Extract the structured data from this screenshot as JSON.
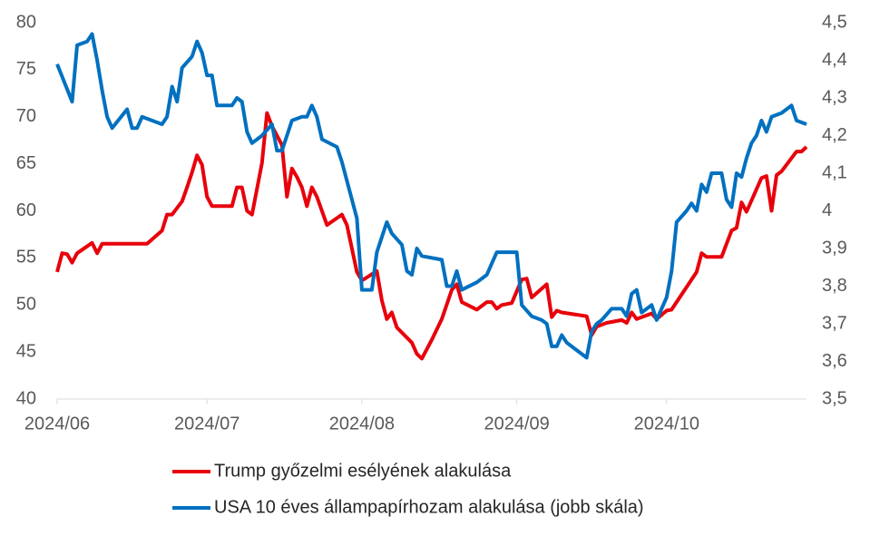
{
  "chart_data": {
    "type": "line",
    "xlim": [
      0,
      150
    ],
    "xticks": [
      {
        "value": 0,
        "label": "2024/06"
      },
      {
        "value": 30,
        "label": "2024/07"
      },
      {
        "value": 61,
        "label": "2024/08"
      },
      {
        "value": 92,
        "label": "2024/09"
      },
      {
        "value": 122,
        "label": "2024/10"
      }
    ],
    "ylim": [
      40,
      80
    ],
    "yticks": [
      40,
      45,
      50,
      55,
      60,
      65,
      70,
      75,
      80
    ],
    "y2lim": [
      3.5,
      4.5
    ],
    "y2ticks": [
      {
        "value": 3.5,
        "label": "3,5"
      },
      {
        "value": 3.6,
        "label": "3,6"
      },
      {
        "value": 3.7,
        "label": "3,7"
      },
      {
        "value": 3.8,
        "label": "3,8"
      },
      {
        "value": 3.9,
        "label": "3,9"
      },
      4,
      {
        "value": 4.1,
        "label": "4,1"
      },
      {
        "value": 4.2,
        "label": "4,2"
      },
      {
        "value": 4.3,
        "label": "4,3"
      },
      {
        "value": 4.4,
        "label": "4,4"
      },
      {
        "value": 4.5,
        "label": "4,5"
      }
    ],
    "series": [
      {
        "name": "Trump győzelmi esélyének alakulása",
        "color": "#e8000b",
        "x": [
          0,
          1,
          2,
          3,
          4,
          7,
          8,
          9,
          18,
          21,
          22,
          23,
          25,
          26,
          27,
          28,
          29,
          30,
          31,
          35,
          36,
          37,
          38,
          39,
          41,
          42,
          43,
          45,
          46,
          47,
          48,
          49,
          50,
          51,
          52,
          54,
          57,
          58,
          60,
          61,
          64,
          65,
          66,
          67,
          68,
          71,
          72,
          73,
          75,
          77,
          79,
          80,
          81,
          84,
          86,
          87,
          88,
          89,
          91,
          93,
          94,
          95,
          98,
          99,
          100,
          101,
          106,
          107,
          108,
          110,
          113,
          114,
          115,
          116,
          119,
          120,
          122,
          123,
          128,
          129,
          130,
          133,
          135,
          136,
          137,
          138,
          141,
          142,
          143,
          144,
          145,
          148,
          149,
          150
        ],
        "values": [
          53.5,
          55.5,
          55.4,
          54.5,
          55.5,
          56.6,
          55.5,
          56.5,
          56.5,
          57.9,
          59.6,
          59.6,
          61.0,
          62.5,
          64.1,
          65.9,
          64.9,
          61.5,
          60.5,
          60.5,
          62.5,
          62.5,
          60.0,
          59.6,
          65.1,
          70.4,
          69.0,
          67.0,
          61.5,
          64.5,
          63.6,
          62.5,
          60.5,
          62.5,
          61.5,
          58.5,
          59.6,
          58.5,
          53.5,
          52.6,
          53.6,
          50.5,
          48.5,
          49.2,
          47.6,
          46.0,
          44.8,
          44.3,
          46.3,
          48.5,
          51.6,
          52.2,
          50.3,
          49.5,
          50.3,
          50.3,
          49.6,
          50.0,
          50.2,
          52.7,
          52.8,
          50.8,
          52.2,
          48.7,
          49.4,
          49.2,
          48.8,
          46.8,
          47.7,
          48.1,
          48.4,
          48.1,
          49.2,
          48.5,
          49.1,
          48.5,
          49.4,
          49.5,
          53.5,
          55.5,
          55.1,
          55.1,
          57.9,
          58.2,
          60.9,
          59.9,
          63.5,
          63.7,
          60.0,
          63.8,
          64.2,
          66.3,
          66.3,
          66.8
        ]
      },
      {
        "name": "USA 10 éves állampapírhozam alakulása (jobb skála)",
        "color": "#0070c0",
        "axis": "y2",
        "x": [
          0,
          3,
          4,
          6,
          7,
          8,
          9,
          10,
          11,
          14,
          15,
          16,
          17,
          21,
          22,
          23,
          24,
          25,
          27,
          28,
          29,
          30,
          31,
          32,
          35,
          36,
          37,
          38,
          39,
          41,
          43,
          44,
          45,
          47,
          49,
          50,
          51,
          52,
          53,
          56,
          57,
          59,
          60,
          61,
          63,
          64,
          66,
          67,
          69,
          70,
          71,
          72,
          73,
          77,
          78,
          79,
          80,
          81,
          84,
          86,
          88,
          92,
          93,
          95,
          97,
          98,
          99,
          100,
          101,
          102,
          104,
          106,
          107,
          108,
          109,
          111,
          113,
          114,
          115,
          116,
          117,
          119,
          120,
          122,
          123,
          124,
          126,
          127,
          128,
          129,
          130,
          131,
          132,
          133,
          134,
          135,
          136,
          137,
          138,
          139,
          140,
          141,
          142,
          143,
          145,
          147,
          148,
          150
        ],
        "values": [
          4.39,
          4.29,
          4.44,
          4.45,
          4.47,
          4.4,
          4.32,
          4.25,
          4.22,
          4.27,
          4.22,
          4.22,
          4.25,
          4.23,
          4.25,
          4.33,
          4.29,
          4.38,
          4.41,
          4.45,
          4.42,
          4.36,
          4.36,
          4.28,
          4.28,
          4.3,
          4.29,
          4.21,
          4.18,
          4.2,
          4.23,
          4.16,
          4.16,
          4.24,
          4.25,
          4.25,
          4.28,
          4.25,
          4.19,
          4.17,
          4.13,
          4.03,
          3.98,
          3.79,
          3.79,
          3.89,
          3.97,
          3.94,
          3.91,
          3.84,
          3.83,
          3.9,
          3.88,
          3.87,
          3.8,
          3.8,
          3.84,
          3.79,
          3.81,
          3.83,
          3.89,
          3.89,
          3.75,
          3.72,
          3.71,
          3.7,
          3.64,
          3.64,
          3.67,
          3.65,
          3.63,
          3.61,
          3.68,
          3.7,
          3.71,
          3.74,
          3.74,
          3.72,
          3.78,
          3.79,
          3.73,
          3.75,
          3.71,
          3.77,
          3.84,
          3.97,
          4.0,
          4.02,
          4.0,
          4.07,
          4.05,
          4.1,
          4.1,
          4.1,
          4.03,
          4.01,
          4.1,
          4.09,
          4.14,
          4.18,
          4.2,
          4.24,
          4.21,
          4.25,
          4.26,
          4.28,
          4.24,
          4.23
        ]
      }
    ]
  }
}
